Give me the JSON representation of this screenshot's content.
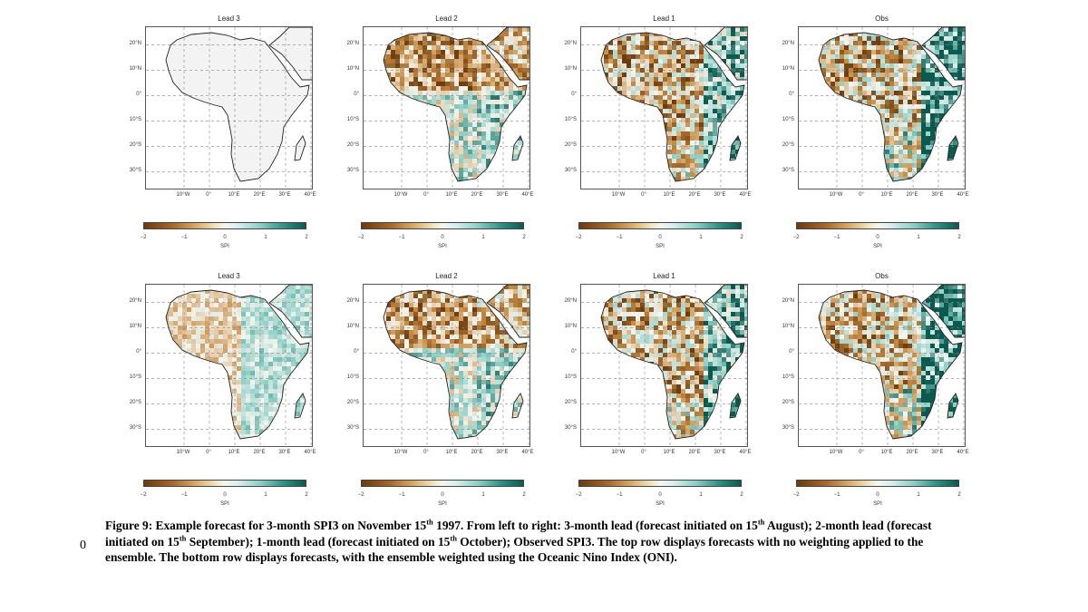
{
  "figure": {
    "rows": [
      {
        "panels": [
          {
            "title": "Lead 3",
            "pattern": "blank",
            "seed": 3
          },
          {
            "title": "Lead 2",
            "pattern": "mixed_dry_north",
            "seed": 7
          },
          {
            "title": "Lead 1",
            "pattern": "dry_west_wet_east",
            "seed": 11
          },
          {
            "title": "Obs",
            "pattern": "dry_west_wet_east_strong",
            "seed": 17
          }
        ]
      },
      {
        "panels": [
          {
            "title": "Lead 3",
            "pattern": "faint",
            "seed": 23
          },
          {
            "title": "Lead 2",
            "pattern": "mixed_dry_north",
            "seed": 29
          },
          {
            "title": "Lead 1",
            "pattern": "dry_west_wet_east",
            "seed": 31
          },
          {
            "title": "Obs",
            "pattern": "dry_west_wet_east_strong",
            "seed": 41
          }
        ]
      }
    ],
    "lat_labels": [
      "20°N",
      "10°N",
      "0°",
      "10°S",
      "20°S",
      "30°S"
    ],
    "lon_labels": [
      "10°W",
      "0°",
      "10°E",
      "20°E",
      "30°E",
      "40°E"
    ],
    "colorbar": {
      "ticks": [
        "−2",
        "−1",
        "0",
        "1",
        "2"
      ],
      "label": "SPI",
      "colors": {
        "dry_strong": "#6b3a0e",
        "dry": "#c98f45",
        "neutral": "#f7f5ef",
        "wet": "#8dcfc6",
        "wet_strong": "#0b5a4f"
      }
    }
  },
  "margin_number": "0",
  "caption": {
    "figure_label": "Figure 9:",
    "text_1": " Example forecast for 3-month SPI3 on November 15",
    "sup_1": "th",
    "text_2": " 1997. From left to right: 3-month lead (forecast initiated on 15",
    "sup_2": "th",
    "text_3": " August); 2-month lead (forecast initiated on 15",
    "sup_3": "th",
    "text_4": " September); 1-month lead (forecast initiated on 15",
    "sup_4": "th",
    "text_5": " October); Observed SPI3. The top row displays forecasts with no weighting applied to the ensemble. The bottom row displays forecasts, with the ensemble weighted using the Oceanic Nino Index (ONI)."
  }
}
